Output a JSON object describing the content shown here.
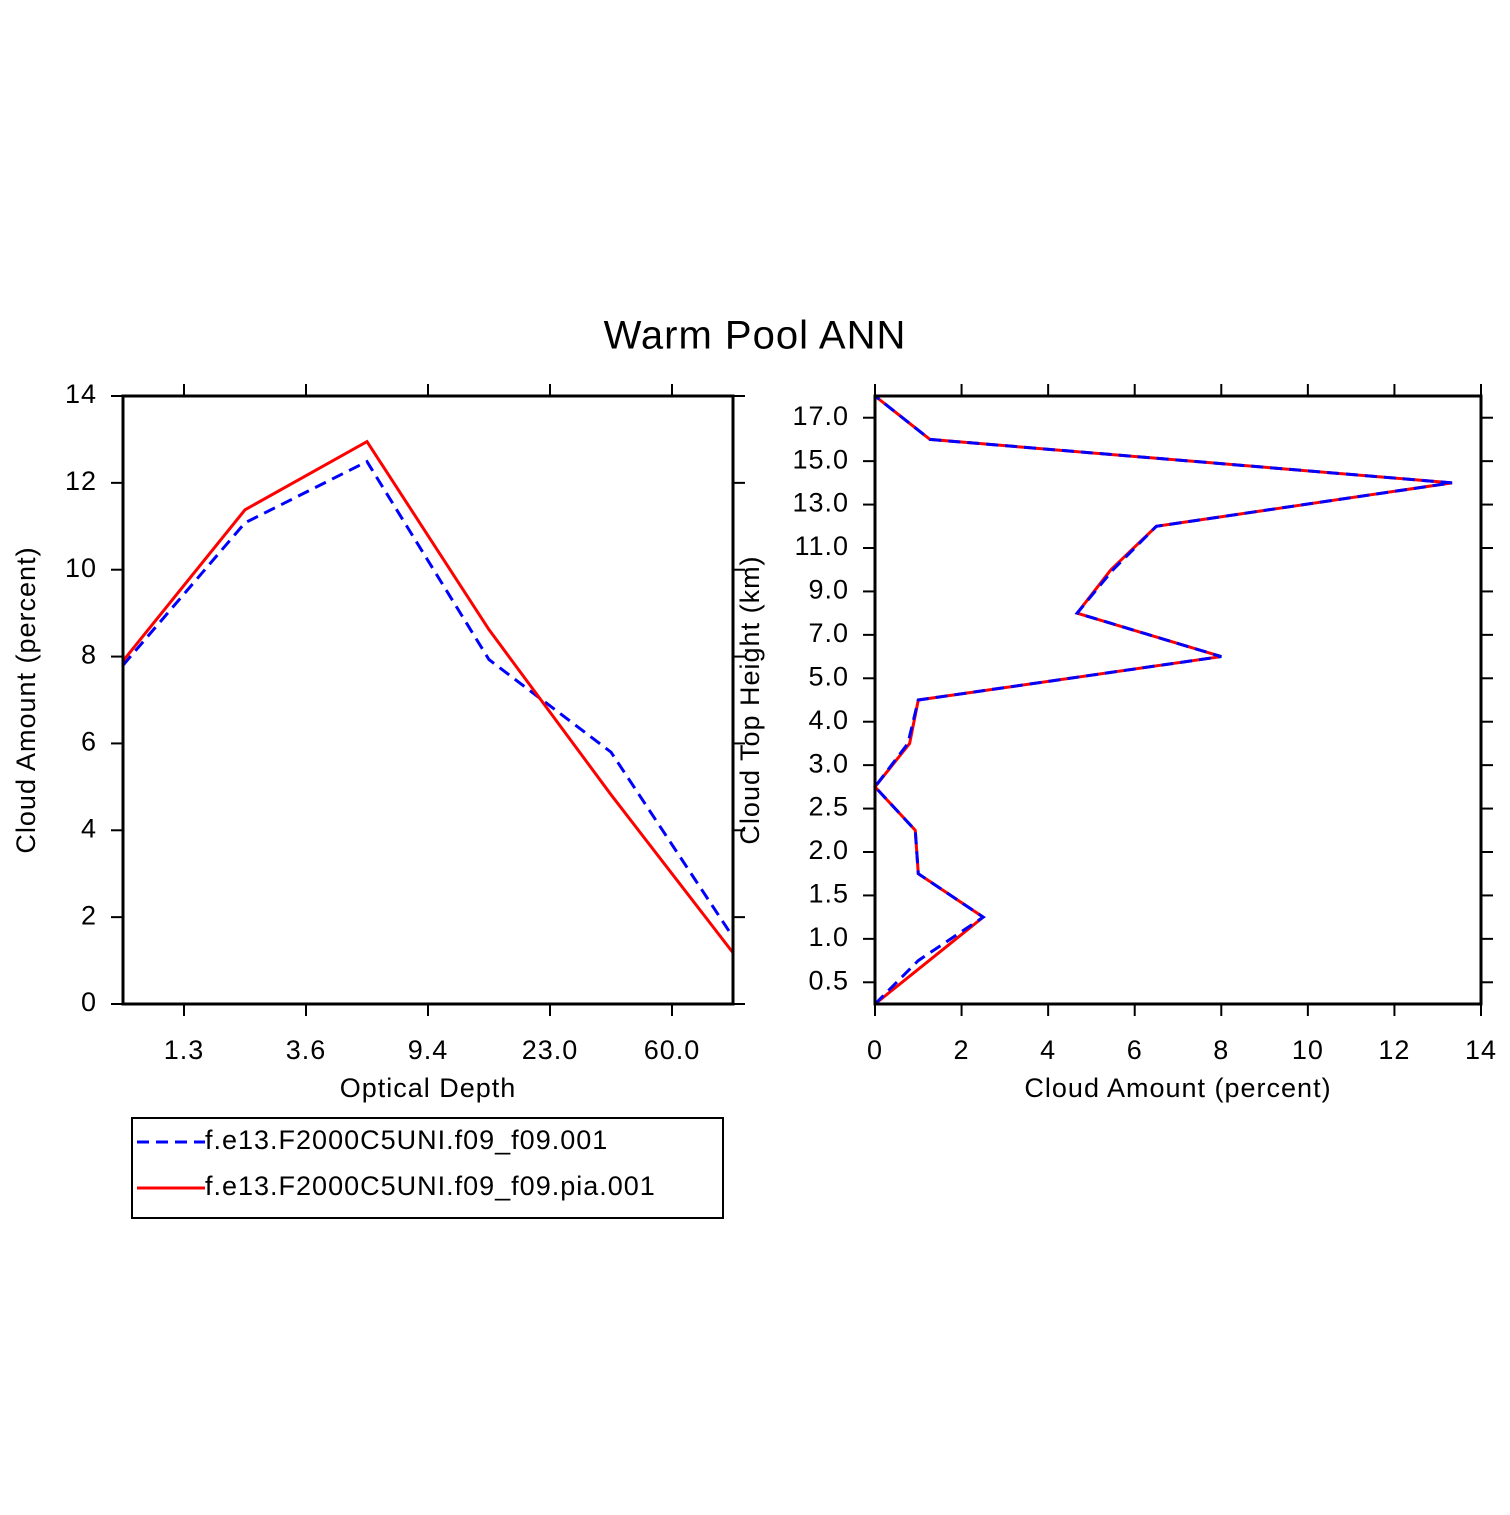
{
  "title": "Warm Pool ANN",
  "chart_data": [
    {
      "type": "line",
      "orientation": "vertical",
      "xlabel": "Optical Depth",
      "ylabel": "Cloud Amount (percent)",
      "x": [
        0,
        1,
        2,
        3,
        4,
        5
      ],
      "xlim": [
        0,
        5
      ],
      "xticks": [
        {
          "value": 0.5,
          "label": "1.3"
        },
        {
          "value": 1.5,
          "label": "3.6"
        },
        {
          "value": 2.5,
          "label": "9.4"
        },
        {
          "value": 3.5,
          "label": "23.0"
        },
        {
          "value": 4.5,
          "label": "60.0"
        }
      ],
      "ylim": [
        0,
        14
      ],
      "yticks": [
        0,
        2,
        4,
        6,
        8,
        10,
        12,
        14
      ],
      "legend": "below",
      "series": [
        {
          "name": "f.e13.F2000C5UNI.f09_f09.001",
          "color": "#0000ff",
          "dashed": true,
          "values": [
            7.8,
            11.08,
            12.49,
            7.93,
            5.8,
            1.54
          ]
        },
        {
          "name": "f.e13.F2000C5UNI.f09_f09.pia.001",
          "color": "#ff0000",
          "dashed": false,
          "values": [
            7.9,
            11.38,
            12.95,
            8.62,
            4.82,
            1.18
          ]
        }
      ]
    },
    {
      "type": "line",
      "orientation": "horizontal",
      "xlabel": "Cloud Amount (percent)",
      "ylabel": "Cloud Top Height (km)",
      "y": [
        0,
        1,
        2,
        3,
        4,
        5,
        6,
        7,
        8,
        9,
        10,
        11,
        12,
        13,
        14
      ],
      "ylim": [
        0,
        14
      ],
      "yticks": [
        0.5,
        {
          "value": 1.5,
          "label": "1.0"
        },
        {
          "value": 2.5,
          "label": "1.5"
        },
        {
          "value": 3.5,
          "label": "2.0"
        },
        {
          "value": 4.5,
          "label": "2.5"
        },
        {
          "value": 5.5,
          "label": "3.0"
        },
        {
          "value": 6.5,
          "label": "4.0"
        },
        {
          "value": 7.5,
          "label": "5.0"
        },
        {
          "value": 8.5,
          "label": "7.0"
        },
        {
          "value": 9.5,
          "label": "9.0"
        },
        {
          "value": 10.5,
          "label": "11.0"
        },
        {
          "value": 11.5,
          "label": "13.0"
        },
        {
          "value": 12.5,
          "label": "15.0"
        },
        {
          "value": 13.5,
          "label": "17.0"
        }
      ],
      "xlim": [
        0,
        14
      ],
      "xticks": [
        0,
        2,
        4,
        6,
        8,
        10,
        12,
        14
      ],
      "series": [
        {
          "color": "#ff0000",
          "dashed": false,
          "values": [
            0,
            1.25,
            2.5,
            1.0,
            0.93,
            0,
            0.8,
            1.0,
            8.0,
            4.67,
            5.45,
            6.5,
            13.33,
            1.27,
            0
          ]
        },
        {
          "color": "#0000ff",
          "dashed": true,
          "values": [
            0,
            1.0,
            2.5,
            1.0,
            0.93,
            0,
            0.76,
            1.0,
            8.0,
            4.67,
            5.5,
            6.5,
            13.33,
            1.27,
            0
          ]
        }
      ]
    }
  ]
}
